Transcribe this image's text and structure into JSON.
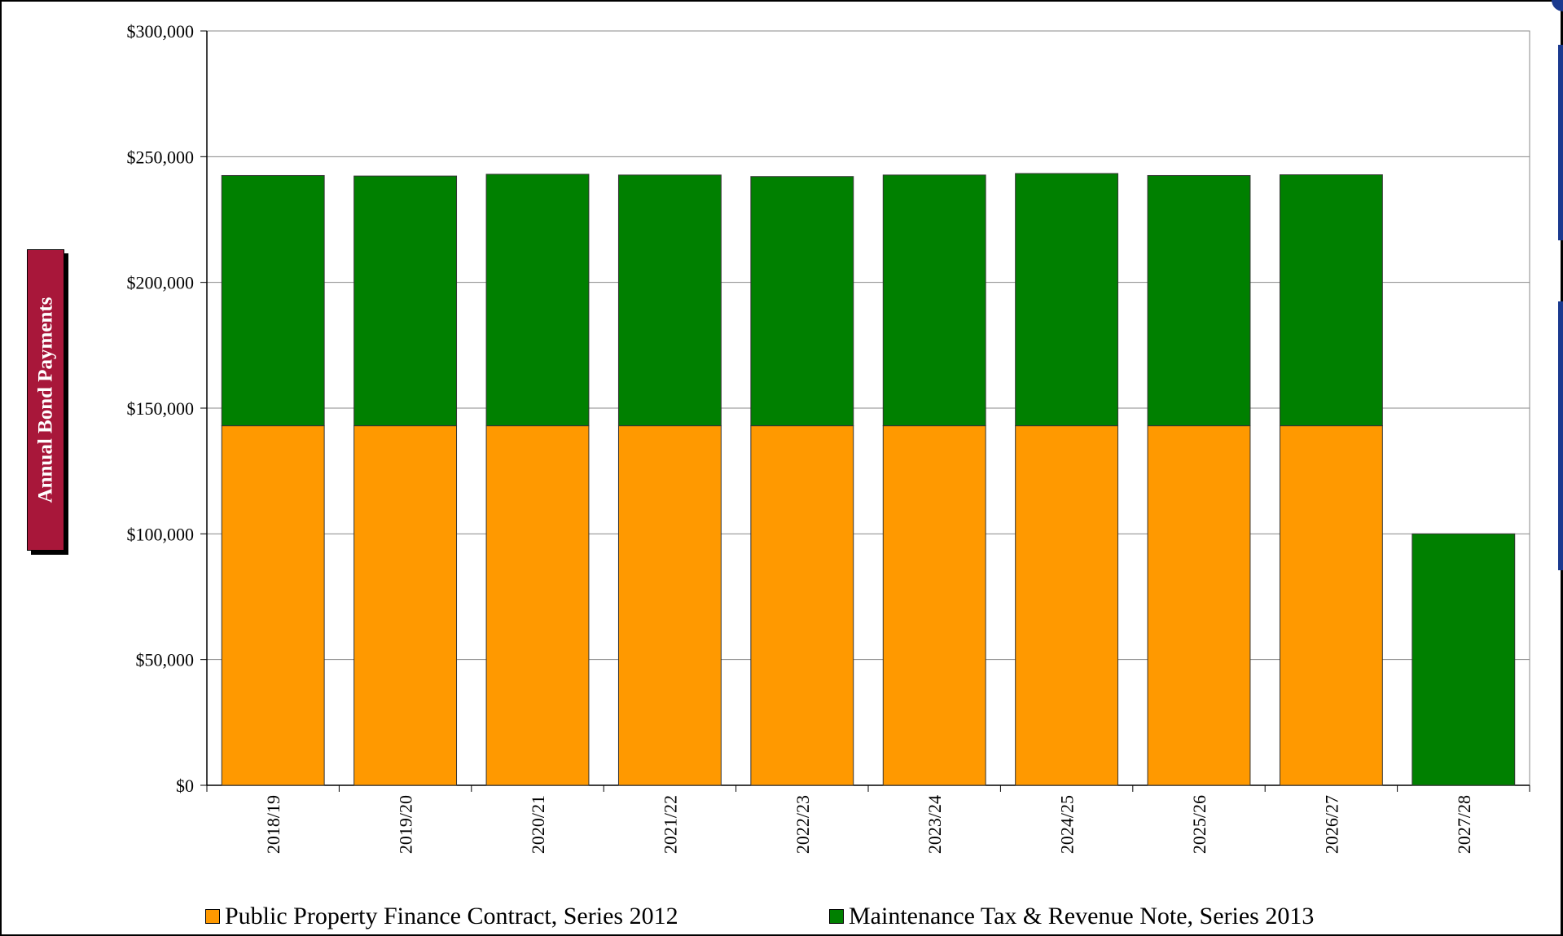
{
  "chart_data": {
    "type": "bar",
    "stacked": true,
    "title": "",
    "ylabel": "Annual Bond Payments",
    "xlabel": "",
    "ylim": [
      0,
      300000
    ],
    "yticks": [
      0,
      50000,
      100000,
      150000,
      200000,
      250000,
      300000
    ],
    "ytick_labels": [
      "$0",
      "$50,000",
      "$100,000",
      "$150,000",
      "$200,000",
      "$250,000",
      "$300,000"
    ],
    "categories": [
      "2018/19",
      "2019/20",
      "2020/21",
      "2021/22",
      "2022/23",
      "2023/24",
      "2024/25",
      "2025/26",
      "2026/27",
      "2027/28"
    ],
    "series": [
      {
        "name": "Public Property Finance Contract, Series 2012",
        "color": "#ff9900",
        "values": [
          143000,
          143000,
          143000,
          143000,
          143000,
          143000,
          143000,
          143000,
          143000,
          0
        ]
      },
      {
        "name": "Maintenance Tax & Revenue Note, Series 2013",
        "color": "#008000",
        "values": [
          99500,
          99300,
          100000,
          99700,
          99100,
          99700,
          100300,
          99500,
          99800,
          100000
        ]
      }
    ],
    "grid": true,
    "legend_position": "bottom"
  }
}
